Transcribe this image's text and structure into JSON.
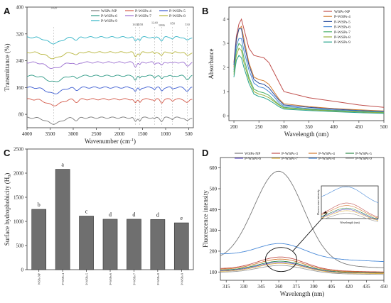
{
  "panels": {
    "A": {
      "label": "A",
      "xlabel": "Wavenumber (cm",
      "xlabel_sup": "-1",
      "xlabel_end": ")",
      "ylabel": "Transmittance (%)",
      "xlim": [
        4000,
        400
      ],
      "ylim": [
        40,
        400
      ],
      "xticks": [
        "4000",
        "3500",
        "3000",
        "2500",
        "2000",
        "1500",
        "1000",
        "500"
      ],
      "xtick_values": [
        4000,
        3500,
        3000,
        2500,
        2000,
        1500,
        1000,
        500
      ],
      "yticks": [
        "80",
        "160",
        "240",
        "320",
        "400"
      ],
      "ytick_values": [
        80,
        160,
        240,
        320,
        400
      ],
      "legend": [
        "WSPs-NP",
        "P-WSPs-4",
        "P-WSPs-5",
        "P-WSPs-6",
        "P-WSPs-7",
        "P-WSPs-8",
        "P-WSPs-9"
      ],
      "colors": [
        "#7a7a7a",
        "#d45a4a",
        "#3b5bd0",
        "#2f9a86",
        "#9b6fd0",
        "#b6b43a",
        "#31b3c5"
      ],
      "annotations": [
        "3420",
        "1654",
        "1558",
        "1240",
        "1086",
        "850",
        "530"
      ],
      "annotation_x": [
        3420,
        1654,
        1558,
        1240,
        1086,
        850,
        530
      ],
      "annotation_y": [
        395,
        345,
        345,
        350,
        343,
        348,
        345
      ],
      "offsets": [
        70,
        125,
        160,
        195,
        235,
        265,
        310
      ]
    },
    "B": {
      "label": "B",
      "xlabel": "Wavelength (nm)",
      "ylabel": "Absorbance",
      "xlim": [
        190,
        500
      ],
      "ylim": [
        -0.2,
        4.5
      ],
      "xticks": [
        "200",
        "250",
        "300",
        "350",
        "400",
        "450",
        "500"
      ],
      "xtick_values": [
        200,
        250,
        300,
        350,
        400,
        450,
        500
      ],
      "yticks": [
        "0",
        "1",
        "2",
        "3",
        "4"
      ],
      "ytick_values": [
        0,
        1,
        2,
        3,
        4
      ],
      "legend": [
        "WSPs-NP",
        "P-WSPs-4",
        "P-WSPs-5",
        "P-WSPs-6",
        "P-WSPs-7",
        "P-WSPs-8",
        "P-WSPs-9"
      ],
      "colors": [
        "#c0504d",
        "#d27a2e",
        "#2a4d9c",
        "#4a8ad8",
        "#4ab06a",
        "#9ab040",
        "#27a38c"
      ]
    },
    "C": {
      "label": "C",
      "ylabel": "Surface hydrophobicity (H",
      "ylabel_sub": "0",
      "ylabel_end": ")",
      "ylim": [
        0,
        2500
      ],
      "yticks": [
        "0",
        "500",
        "1000",
        "1500",
        "2000",
        "2500"
      ],
      "ytick_values": [
        0,
        500,
        1000,
        1500,
        2000,
        2500
      ],
      "categories": [
        "WSPs-NP",
        "P-WSPs-4",
        "P-WSPs-5",
        "P-WSPs-6",
        "P-WSPs-7",
        "P-WSPs-8",
        "P-WSPs-9"
      ],
      "values": [
        1250,
        2080,
        1110,
        1045,
        1045,
        1040,
        970
      ],
      "letters": [
        "b",
        "a",
        "c",
        "d",
        "d",
        "d",
        "e"
      ],
      "bar_color": "#6f6f6f"
    },
    "D": {
      "label": "D",
      "xlabel": "Wavelength (nm)",
      "ylabel": "Fluorescence intensity",
      "xlim": [
        310,
        450
      ],
      "ylim": [
        60,
        650
      ],
      "xticks": [
        "315",
        "330",
        "345",
        "360",
        "375",
        "390",
        "405",
        "420",
        "435",
        "450"
      ],
      "xtick_values": [
        315,
        330,
        345,
        360,
        375,
        390,
        405,
        420,
        435,
        450
      ],
      "yticks": [
        "100",
        "200",
        "300",
        "400",
        "500",
        "600"
      ],
      "ytick_values": [
        100,
        200,
        300,
        400,
        500,
        600
      ],
      "legend": [
        "WSPs-NP",
        "P-WSPs-3",
        "P-WSPs-4",
        "P-WSPs-5",
        "P-WSPs-6",
        "P-WSPs-7",
        "P-WSPs-8",
        "P-WSPs-9"
      ],
      "colors": [
        "#7a7a7a",
        "#c0504d",
        "#d27a2e",
        "#2e8a4a",
        "#6a5acd",
        "#e0b040",
        "#4a8ad8",
        "#9a9a9a"
      ],
      "inset_ylabel": "Fluorescence intensity",
      "inset_xlabel": "Wavelength (nm)"
    }
  },
  "chart_data": [
    {
      "type": "line",
      "panel": "A",
      "title": "",
      "xlabel": "Wavenumber (cm-1)",
      "ylabel": "Transmittance (%)",
      "xlim": [
        4000,
        400
      ],
      "ylim": [
        40,
        400
      ],
      "series": [
        {
          "name": "WSPs-NP",
          "baseline": 70
        },
        {
          "name": "P-WSPs-4",
          "baseline": 125
        },
        {
          "name": "P-WSPs-5",
          "baseline": 160
        },
        {
          "name": "P-WSPs-6",
          "baseline": 195
        },
        {
          "name": "P-WSPs-7",
          "baseline": 235
        },
        {
          "name": "P-WSPs-8",
          "baseline": 265
        },
        {
          "name": "P-WSPs-9",
          "baseline": 310
        }
      ]
    },
    {
      "type": "line",
      "panel": "B",
      "title": "",
      "xlabel": "Wavelength (nm)",
      "ylabel": "Absorbance",
      "series": [
        {
          "name": "WSPs-NP",
          "x": [
            200,
            205,
            210,
            215,
            220,
            230,
            240,
            250,
            260,
            270,
            280,
            290,
            300,
            350,
            400,
            450,
            500
          ],
          "y": [
            2.2,
            3.3,
            3.8,
            4.0,
            3.6,
            2.8,
            2.5,
            2.45,
            2.4,
            2.2,
            1.8,
            1.4,
            1.0,
            0.75,
            0.6,
            0.45,
            0.35
          ]
        },
        {
          "name": "P-WSPs-4",
          "x": [
            200,
            205,
            210,
            215,
            220,
            230,
            240,
            250,
            260,
            270,
            280,
            290,
            300,
            350,
            400,
            450,
            500
          ],
          "y": [
            2.0,
            3.1,
            3.6,
            3.7,
            3.2,
            2.2,
            1.6,
            1.5,
            1.45,
            1.3,
            1.0,
            0.7,
            0.5,
            0.38,
            0.3,
            0.25,
            0.2
          ]
        },
        {
          "name": "P-WSPs-5",
          "x": [
            200,
            205,
            210,
            215,
            220,
            230,
            240,
            250,
            260,
            270,
            280,
            290,
            300,
            350,
            400,
            450,
            500
          ],
          "y": [
            2.1,
            3.2,
            3.6,
            3.6,
            3.0,
            2.1,
            1.5,
            1.35,
            1.3,
            1.15,
            0.9,
            0.65,
            0.45,
            0.35,
            0.28,
            0.22,
            0.18
          ]
        },
        {
          "name": "P-WSPs-6",
          "x": [
            200,
            205,
            210,
            215,
            220,
            230,
            240,
            250,
            260,
            270,
            280,
            290,
            300,
            350,
            400,
            450,
            500
          ],
          "y": [
            1.9,
            2.9,
            3.2,
            3.2,
            2.7,
            1.9,
            1.35,
            1.2,
            1.15,
            1.0,
            0.8,
            0.55,
            0.4,
            0.3,
            0.24,
            0.2,
            0.16
          ]
        },
        {
          "name": "P-WSPs-7",
          "x": [
            200,
            205,
            210,
            215,
            220,
            230,
            240,
            250,
            260,
            270,
            280,
            290,
            300,
            350,
            400,
            450,
            500
          ],
          "y": [
            1.8,
            2.7,
            3.0,
            2.9,
            2.4,
            1.6,
            1.1,
            1.0,
            0.95,
            0.85,
            0.65,
            0.48,
            0.35,
            0.27,
            0.22,
            0.18,
            0.14
          ]
        },
        {
          "name": "P-WSPs-8",
          "x": [
            200,
            205,
            210,
            215,
            220,
            230,
            240,
            250,
            260,
            270,
            280,
            290,
            300,
            350,
            400,
            450,
            500
          ],
          "y": [
            1.7,
            2.5,
            2.8,
            2.7,
            2.2,
            1.5,
            1.0,
            0.9,
            0.85,
            0.75,
            0.6,
            0.44,
            0.32,
            0.25,
            0.2,
            0.16,
            0.12
          ]
        },
        {
          "name": "P-WSPs-9",
          "x": [
            200,
            205,
            210,
            215,
            220,
            230,
            240,
            250,
            260,
            270,
            280,
            290,
            300,
            350,
            400,
            450,
            500
          ],
          "y": [
            1.6,
            2.3,
            2.5,
            2.4,
            2.0,
            1.35,
            0.9,
            0.8,
            0.75,
            0.65,
            0.52,
            0.38,
            0.28,
            0.22,
            0.17,
            0.13,
            0.1
          ]
        }
      ]
    },
    {
      "type": "bar",
      "panel": "C",
      "title": "",
      "xlabel": "",
      "ylabel": "Surface hydrophobicity (H0)",
      "categories": [
        "WSPs-NP",
        "P-WSPs-4",
        "P-WSPs-5",
        "P-WSPs-6",
        "P-WSPs-7",
        "P-WSPs-8",
        "P-WSPs-9"
      ],
      "values": [
        1250,
        2080,
        1110,
        1045,
        1045,
        1040,
        970
      ],
      "ylim": [
        0,
        2500
      ]
    },
    {
      "type": "line",
      "panel": "D",
      "title": "",
      "xlabel": "Wavelength (nm)",
      "ylabel": "Fluorescence intensity",
      "xlim": [
        310,
        450
      ],
      "ylim": [
        60,
        650
      ],
      "series": [
        {
          "name": "WSPs-NP",
          "peak_x": 360,
          "peak_y": 580,
          "base_left": 150,
          "base_right": 120
        },
        {
          "name": "P-WSPs-3",
          "peak_x": 362,
          "peak_y": 170,
          "base_left": 115,
          "base_right": 100
        },
        {
          "name": "P-WSPs-4",
          "peak_x": 362,
          "peak_y": 160,
          "base_left": 112,
          "base_right": 98
        },
        {
          "name": "P-WSPs-5",
          "peak_x": 362,
          "peak_y": 150,
          "base_left": 108,
          "base_right": 95
        },
        {
          "name": "P-WSPs-6",
          "peak_x": 362,
          "peak_y": 145,
          "base_left": 105,
          "base_right": 93
        },
        {
          "name": "P-WSPs-7",
          "peak_x": 362,
          "peak_y": 140,
          "base_left": 102,
          "base_right": 92
        },
        {
          "name": "P-WSPs-8",
          "peak_x": 362,
          "peak_y": 232,
          "base_left": 185,
          "base_right": 150
        },
        {
          "name": "P-WSPs-9",
          "peak_x": 362,
          "peak_y": 130,
          "base_left": 98,
          "base_right": 88
        }
      ]
    }
  ]
}
